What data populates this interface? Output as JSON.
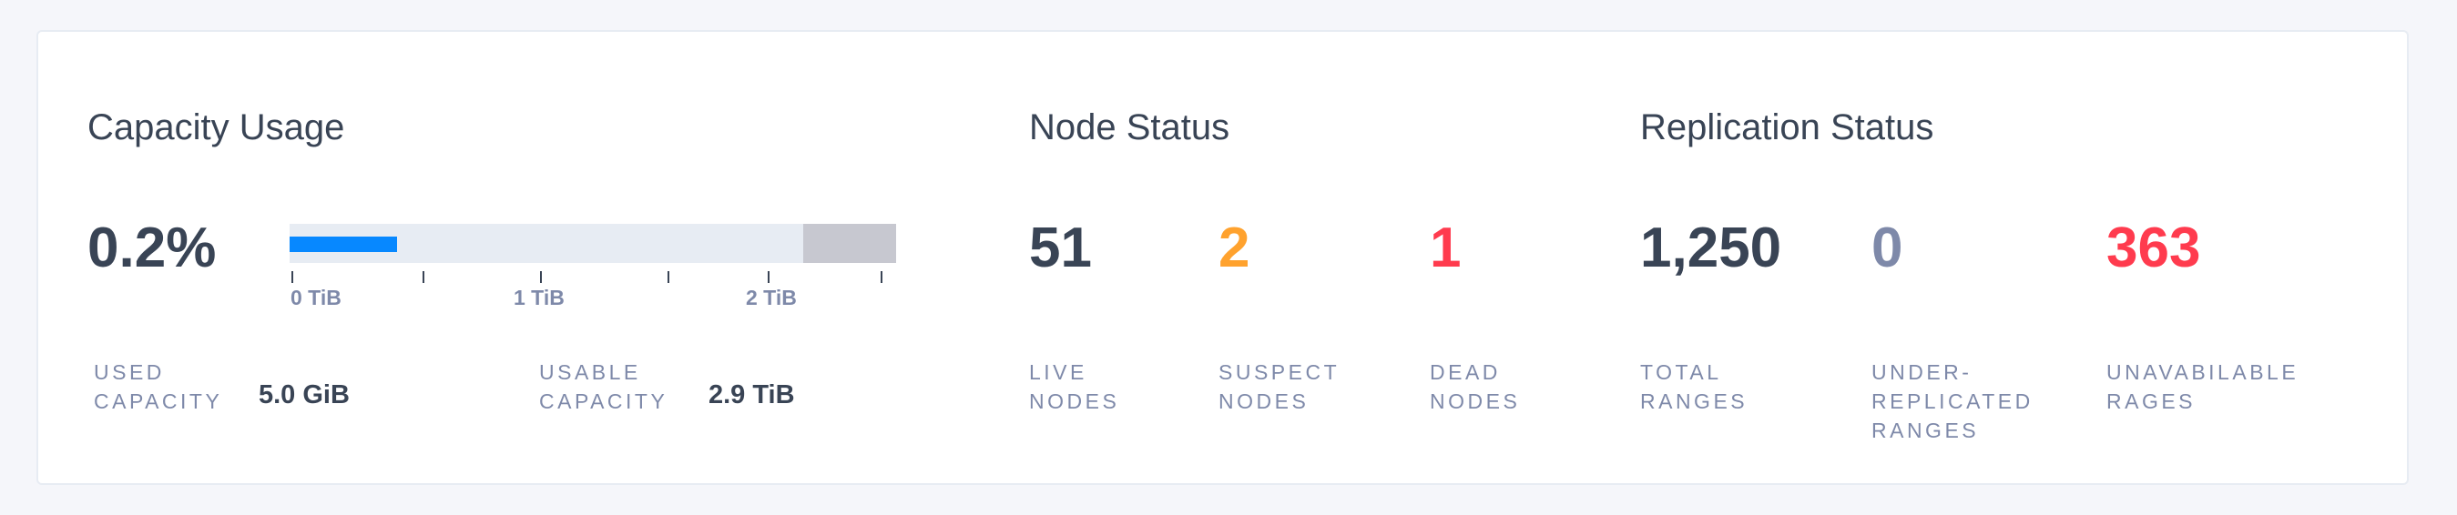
{
  "capacity": {
    "title": "Capacity Usage",
    "percent_label": "0.2%",
    "usage_fraction": 0.002,
    "axis_ticks": [
      "0 TiB",
      "1 TiB",
      "2 TiB"
    ],
    "used_label": [
      "USED",
      "CAPACITY"
    ],
    "used_value": "5.0 GiB",
    "usable_label": [
      "USABLE",
      "CAPACITY"
    ],
    "usable_value": "2.9 TiB"
  },
  "nodes": {
    "title": "Node Status",
    "items": [
      {
        "value": "51",
        "label": [
          "LIVE",
          "NODES"
        ],
        "color": "#394455"
      },
      {
        "value": "2",
        "label": [
          "SUSPECT",
          "NODES"
        ],
        "color": "#ffa22e"
      },
      {
        "value": "1",
        "label": [
          "DEAD",
          "NODES"
        ],
        "color": "#ff3b4e"
      }
    ]
  },
  "replication": {
    "title": "Replication Status",
    "items": [
      {
        "value": "1,250",
        "label": [
          "TOTAL",
          "RANGES"
        ],
        "color": "#394455"
      },
      {
        "value": "0",
        "label": [
          "UNDER-",
          "REPLICATED",
          "RANGES"
        ],
        "color": "#7e89a9"
      },
      {
        "value": "363",
        "label": [
          "UNAVABILABLE",
          "RAGES"
        ],
        "color": "#ff3b4e"
      }
    ]
  },
  "colors": {
    "bar_used": "#0788ff",
    "bar_track": "#e7ecf3",
    "bar_reserved": "#c7c8d0"
  }
}
